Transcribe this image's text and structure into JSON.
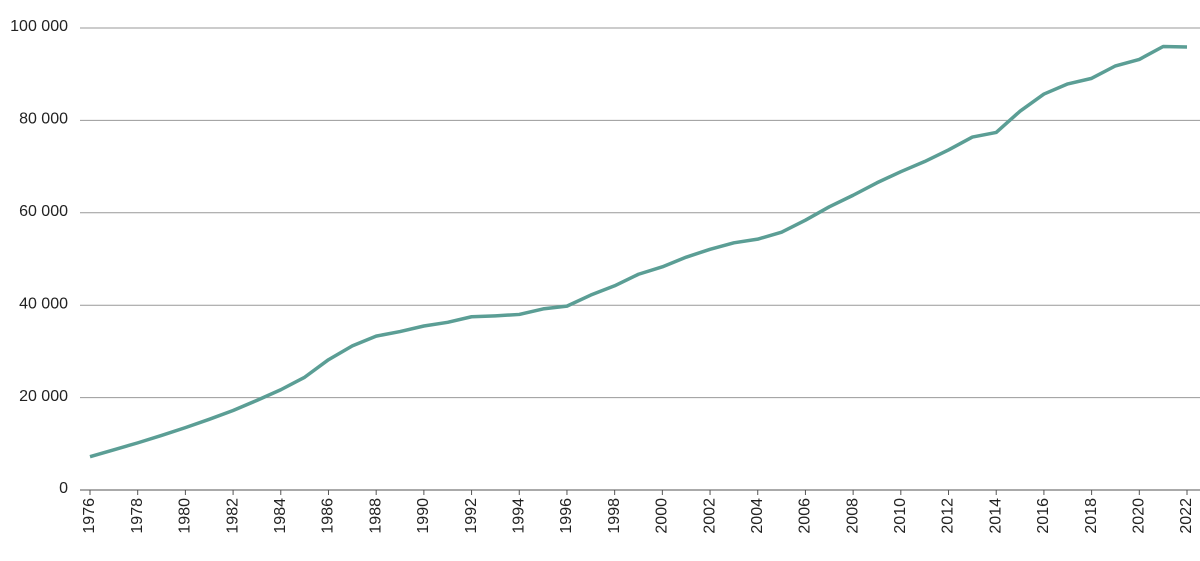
{
  "chart_data": {
    "type": "line",
    "x": [
      1976,
      1977,
      1978,
      1979,
      1980,
      1981,
      1982,
      1983,
      1984,
      1985,
      1986,
      1987,
      1988,
      1989,
      1990,
      1991,
      1992,
      1993,
      1994,
      1995,
      1996,
      1997,
      1998,
      1999,
      2000,
      2001,
      2002,
      2003,
      2004,
      2005,
      2006,
      2007,
      2008,
      2009,
      2010,
      2011,
      2012,
      2013,
      2014,
      2015,
      2016,
      2017,
      2018,
      2019,
      2020,
      2021,
      2022
    ],
    "values": [
      7200,
      8700,
      10200,
      11800,
      13500,
      15300,
      17200,
      19400,
      21700,
      24400,
      28200,
      31200,
      33300,
      34300,
      35500,
      36300,
      37500,
      37700,
      38000,
      39200,
      39800,
      42200,
      44200,
      46700,
      48300,
      50400,
      52100,
      53500,
      54300,
      55800,
      58400,
      61300,
      63800,
      66500,
      68900,
      71100,
      73600,
      76400,
      77400,
      82000,
      85700,
      87900,
      89100,
      91800,
      93200,
      96000,
      95900
    ],
    "color": "#5b9e95",
    "xlim": [
      1976,
      2022
    ],
    "xticks": [
      1976,
      1978,
      1980,
      1982,
      1984,
      1986,
      1988,
      1990,
      1992,
      1994,
      1996,
      1998,
      2000,
      2002,
      2004,
      2006,
      2008,
      2010,
      2012,
      2014,
      2016,
      2018,
      2020,
      2022
    ],
    "ylim": [
      0,
      100000
    ],
    "yticks": [
      0,
      {
        "value": 20000,
        "label": "20 000"
      },
      {
        "value": 40000,
        "label": "40 000"
      },
      {
        "value": 60000,
        "label": "60 000"
      },
      {
        "value": 80000,
        "label": "80 000"
      },
      {
        "value": 100000,
        "label": "100 000"
      }
    ],
    "grid": true
  }
}
